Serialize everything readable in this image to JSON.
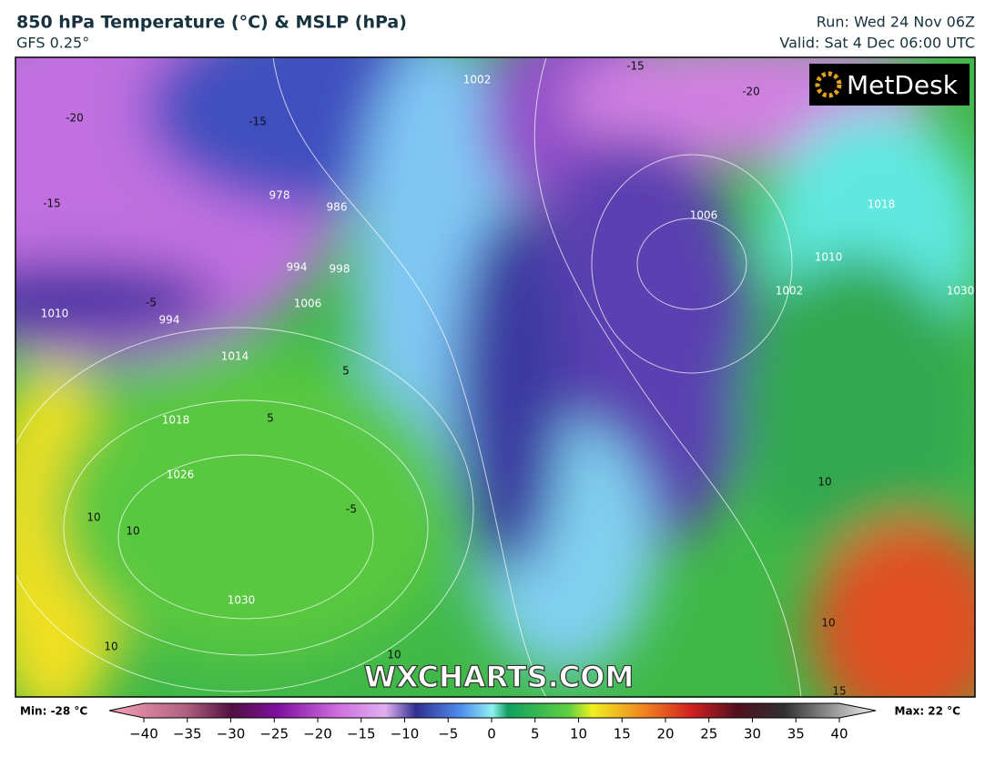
{
  "header": {
    "title": "850 hPa Temperature (°C) & MSLP (hPa)",
    "subtitle": "GFS 0.25°",
    "run": "Run: Wed 24 Nov 06Z",
    "valid": "Valid: Sat 4 Dec 06:00 UTC"
  },
  "logo": "MetDesk",
  "watermark": "WXCHARTS.COM",
  "map": {
    "isobar_labels": [
      "1030",
      "1026",
      "1018",
      "1014",
      "1006",
      "994",
      "998",
      "994",
      "978",
      "986",
      "1002",
      "1006",
      "1010",
      "1002",
      "1018",
      "1030",
      "1010"
    ],
    "temperature_labels": [
      "-15",
      "-20",
      "-15",
      "-20",
      "-15",
      "-5",
      "5",
      "5",
      "-5",
      "10",
      "10",
      "10",
      "10",
      "10",
      "10",
      "15"
    ]
  },
  "colorbar": {
    "min_label": "Min: -28 °C",
    "max_label": "Max: 22 °C",
    "lim": [
      -40,
      40
    ],
    "ticks": [
      {
        "value": -40,
        "label": "−40"
      },
      {
        "value": -35,
        "label": "−35"
      },
      {
        "value": -30,
        "label": "−30"
      },
      {
        "value": -25,
        "label": "−25"
      },
      {
        "value": -20,
        "label": "−20"
      },
      {
        "value": -15,
        "label": "−15"
      },
      {
        "value": -10,
        "label": "−10"
      },
      {
        "value": -5,
        "label": "−5"
      },
      0,
      5,
      10,
      15,
      20,
      25,
      30,
      35,
      40
    ]
  }
}
